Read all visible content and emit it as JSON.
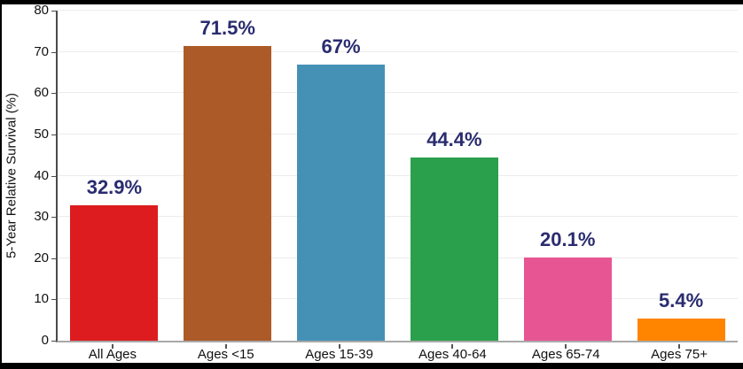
{
  "chart_data": {
    "type": "bar",
    "title": "",
    "xlabel": "",
    "ylabel": "5-Year Relative Survival (%)",
    "categories": [
      "All Ages",
      "Ages <15",
      "Ages 15-39",
      "Ages 40-64",
      "Ages 65-74",
      "Ages 75+"
    ],
    "values": [
      32.9,
      71.5,
      67,
      44.4,
      20.1,
      5.4
    ],
    "value_labels": [
      "32.9%",
      "71.5%",
      "67%",
      "44.4%",
      "20.1%",
      "5.4%"
    ],
    "bar_colors": [
      "#dc1c1e",
      "#ac5a28",
      "#4591b5",
      "#2aa04c",
      "#e75693",
      "#ff8400"
    ],
    "value_label_color": "#2a2c6f",
    "ylim": [
      0,
      80
    ],
    "yticks": [
      0,
      10,
      20,
      30,
      40,
      50,
      60,
      70,
      80
    ],
    "grid": true,
    "legend": "none"
  }
}
